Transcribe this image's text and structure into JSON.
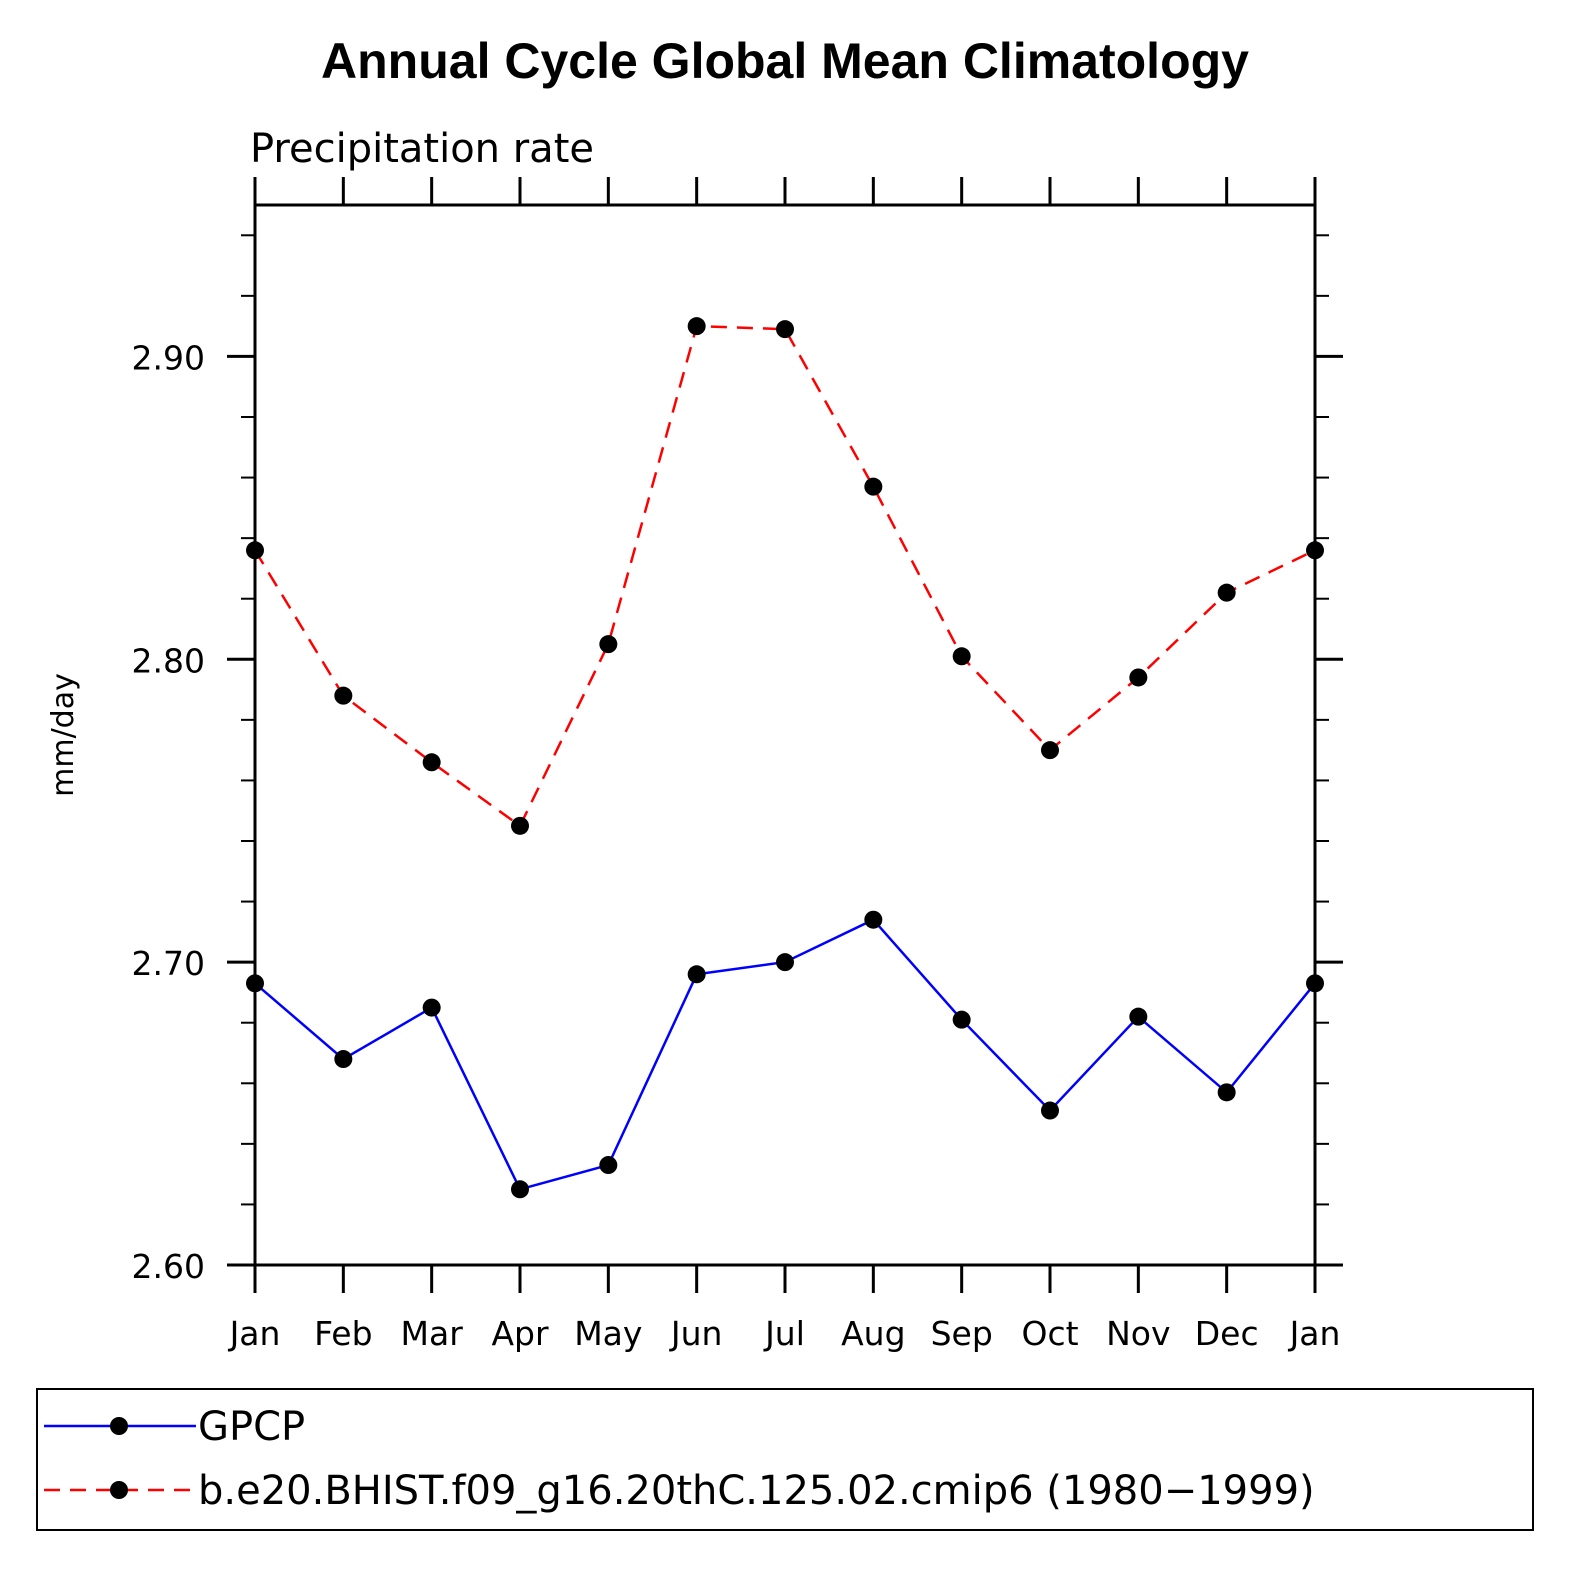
{
  "chart_data": {
    "type": "line",
    "title": "Annual Cycle Global Mean Climatology",
    "subtitle": "Precipitation rate",
    "ylabel": "mm/day",
    "xlabel": "",
    "categories": [
      "Jan",
      "Feb",
      "Mar",
      "Apr",
      "May",
      "Jun",
      "Jul",
      "Aug",
      "Sep",
      "Oct",
      "Nov",
      "Dec",
      "Jan"
    ],
    "ylim": [
      2.6,
      2.95
    ],
    "yticks": [
      "2.60",
      "2.70",
      "2.80",
      "2.90"
    ],
    "grid": false,
    "legend_position": "bottom",
    "series": [
      {
        "name": "GPCP",
        "color": "#0000ff",
        "line_style": "solid",
        "marker": "filled-circle",
        "values": [
          2.693,
          2.668,
          2.685,
          2.625,
          2.633,
          2.696,
          2.7,
          2.714,
          2.681,
          2.651,
          2.682,
          2.657,
          2.693
        ]
      },
      {
        "name": "b.e20.BHIST.f09_g16.20thC.125.02.cmip6 (1980−1999)",
        "color": "#ff0000",
        "line_style": "dashed",
        "marker": "filled-circle",
        "values": [
          2.836,
          2.788,
          2.766,
          2.745,
          2.805,
          2.91,
          2.909,
          2.857,
          2.801,
          2.77,
          2.794,
          2.822,
          2.836
        ]
      }
    ]
  }
}
